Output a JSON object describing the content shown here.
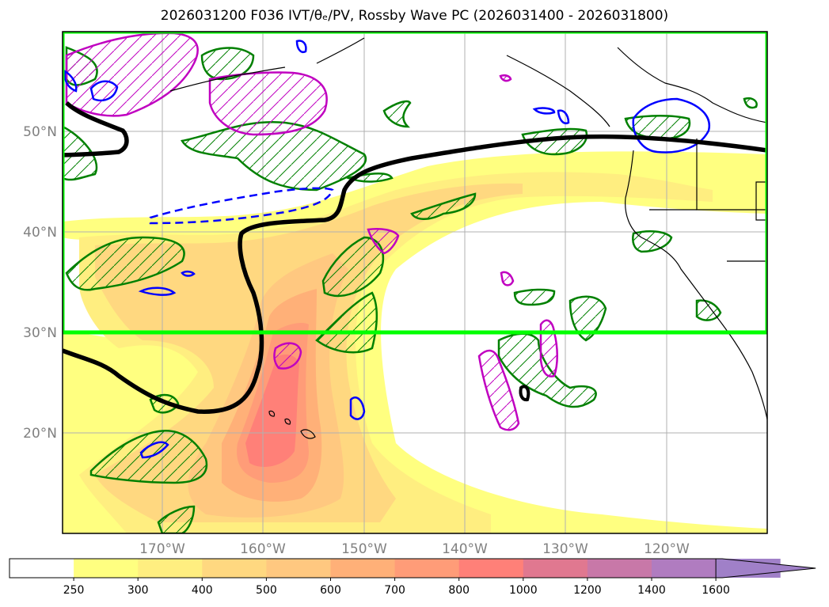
{
  "title": "2026031200 F036 IVT/θₑ/PV, Rossby Wave PC (2026031400 - 2026031800)",
  "map": {
    "projection": "plate-carree",
    "lon_range": [
      -180,
      -110
    ],
    "lat_range": [
      10,
      60
    ],
    "lat_ticks": [
      {
        "value": 20,
        "label": "20°N"
      },
      {
        "value": 30,
        "label": "30°N"
      },
      {
        "value": 40,
        "label": "40°N"
      },
      {
        "value": 50,
        "label": "50°N"
      }
    ],
    "lon_ticks": [
      {
        "value": -170,
        "label": "170°W"
      },
      {
        "value": -160,
        "label": "160°W"
      },
      {
        "value": -150,
        "label": "150°W"
      },
      {
        "value": -140,
        "label": "140°W"
      },
      {
        "value": -130,
        "label": "130°W"
      },
      {
        "value": -120,
        "label": "120°W"
      }
    ],
    "highlight_box": {
      "lon_min": -180,
      "lon_max": -110,
      "lat_min": 30,
      "lat_max": 60,
      "color": "#00ff00"
    },
    "colors": {
      "rossby_contour": "#000000",
      "positive_contour": "#008000",
      "pv_contour": "#c000c0",
      "negative_contour": "#0000ff",
      "coastline": "#000000",
      "grid": "#b0b0b0"
    }
  },
  "colorbar": {
    "levels": [
      "250",
      "300",
      "400",
      "500",
      "600",
      "700",
      "800",
      "1000",
      "1200",
      "1400",
      "1600"
    ],
    "colors": [
      "#ffffff",
      "#ffff80",
      "#ffee80",
      "#ffd880",
      "#ffc880",
      "#ffb078",
      "#ff9c78",
      "#ff8078",
      "#e07890",
      "#c878a8",
      "#b07cc0",
      "#a080c8"
    ],
    "extend": "max"
  }
}
